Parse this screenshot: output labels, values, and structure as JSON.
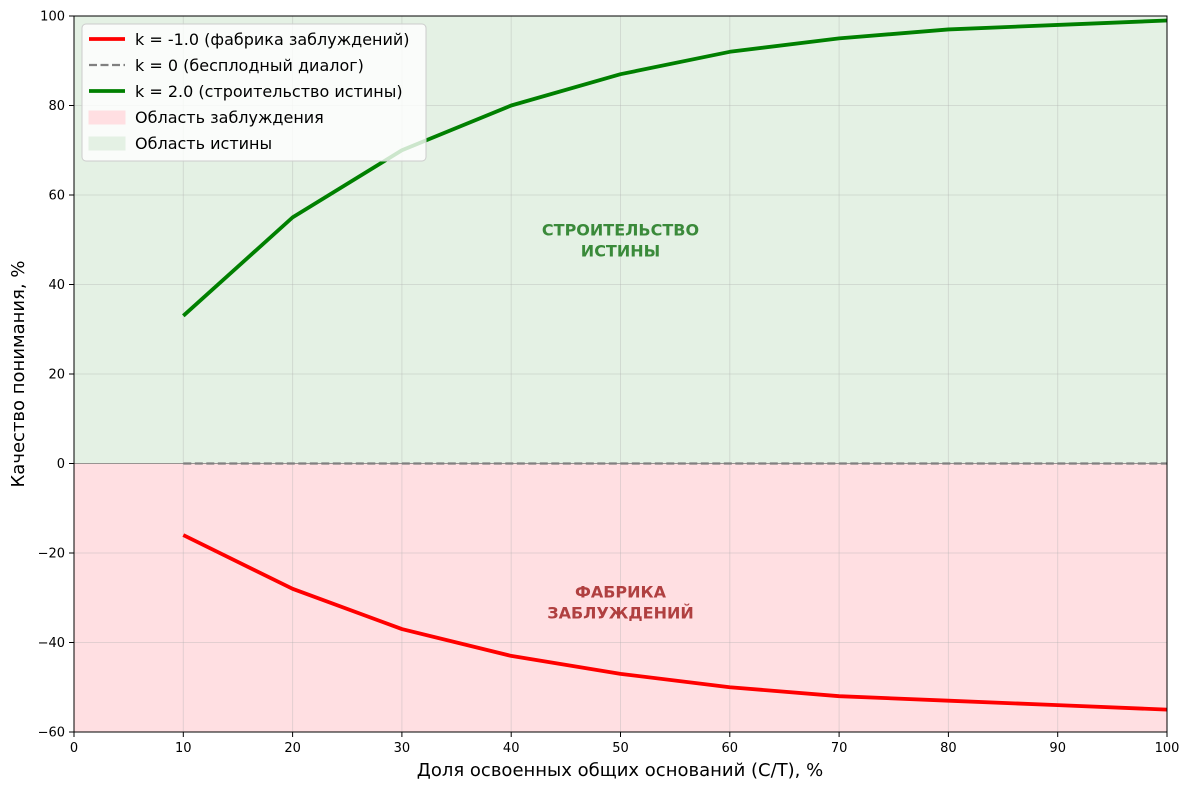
{
  "chart_data": {
    "type": "line",
    "xlabel": "Доля освоенных общих оснований (С/Т), %",
    "ylabel": "Качество понимания, %",
    "xlim": [
      0,
      100
    ],
    "ylim": [
      -60,
      100
    ],
    "xticks": [
      0,
      10,
      20,
      30,
      40,
      50,
      60,
      70,
      80,
      90,
      100
    ],
    "yticks": [
      -60,
      -40,
      -20,
      0,
      20,
      40,
      60,
      80,
      100
    ],
    "ytick_labels": [
      "−60",
      "−40",
      "−20",
      "0",
      "20",
      "40",
      "60",
      "80",
      "100"
    ],
    "grid": true,
    "legend_position": "top-left",
    "x": [
      10,
      20,
      30,
      40,
      50,
      60,
      70,
      80,
      90,
      100
    ],
    "series": [
      {
        "name": "k = -1.0 (фабрика заблуждений)",
        "color": "#ff0000",
        "style": "solid",
        "values": [
          -16,
          -28,
          -37,
          -43,
          -47,
          -50,
          -52,
          -53,
          -54,
          -55
        ]
      },
      {
        "name": "k = 0 (бесплодный диалог)",
        "color": "#808080",
        "style": "dashed",
        "values": [
          0,
          0,
          0,
          0,
          0,
          0,
          0,
          0,
          0,
          0
        ]
      },
      {
        "name": "k = 2.0 (строительство истины)",
        "color": "#008000",
        "style": "solid",
        "values": [
          33,
          55,
          70,
          80,
          87,
          92,
          95,
          97,
          98,
          99
        ]
      }
    ],
    "regions": [
      {
        "name": "Область заблуждения",
        "y_from": -60,
        "y_to": 0,
        "color": "#ffdfe2"
      },
      {
        "name": "Область истины",
        "y_from": 0,
        "y_to": 100,
        "color": "#e4f1e4"
      }
    ],
    "annotations": [
      {
        "lines": [
          "СТРОИТЕЛЬСТВО",
          "ИСТИНЫ"
        ],
        "x": 50,
        "y": 50,
        "color": "#3a8a3a"
      },
      {
        "lines": [
          "ФАБРИКА",
          "ЗАБЛУЖДЕНИЙ"
        ],
        "x": 50,
        "y": -31,
        "color": "#b04040"
      }
    ]
  }
}
